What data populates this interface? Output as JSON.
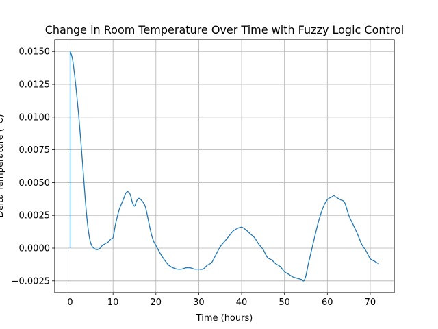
{
  "chart_data": {
    "type": "line",
    "title": "Change in Room Temperature Over Time with Fuzzy Logic Control",
    "xlabel": "Time (hours)",
    "ylabel": "Delta Temperature (°C)",
    "xlim": [
      -3.6,
      75.6
    ],
    "ylim": [
      -0.0034,
      0.0159
    ],
    "xticks": [
      0,
      10,
      20,
      30,
      40,
      50,
      60,
      70
    ],
    "yticks": [
      -0.0025,
      0.0,
      0.0025,
      0.005,
      0.0075,
      0.01,
      0.0125,
      0.015
    ],
    "xtick_labels": [
      "0",
      "10",
      "20",
      "30",
      "40",
      "50",
      "60",
      "70"
    ],
    "ytick_labels": [
      "−0.0025",
      "0.0000",
      "0.0025",
      "0.0050",
      "0.0075",
      "0.0100",
      "0.0125",
      "0.0150"
    ],
    "grid": true,
    "series": [
      {
        "color": "#1f77b4",
        "x": [
          0,
          0,
          0.5,
          1,
          1.5,
          2,
          2.5,
          3,
          3.5,
          4,
          4.5,
          5,
          5.5,
          6,
          6.5,
          7,
          7.5,
          8,
          8.5,
          9,
          9.5,
          10,
          10.5,
          11,
          11.5,
          12,
          12.5,
          13,
          13.5,
          14,
          14.5,
          15,
          15.5,
          16,
          16.5,
          17,
          17.5,
          18,
          18.5,
          19,
          19.5,
          20,
          21,
          22,
          23,
          24,
          25,
          26,
          27,
          28,
          29,
          30,
          31,
          32,
          33,
          34,
          35,
          36,
          37,
          38,
          39,
          40,
          41,
          42,
          43,
          44,
          45,
          46,
          47,
          48,
          49,
          50,
          51,
          52,
          53,
          54,
          54.5,
          55,
          55.5,
          56,
          57,
          58,
          59,
          60,
          61,
          61.5,
          62,
          63,
          64,
          65,
          66,
          67,
          68,
          69,
          70,
          71,
          72
        ],
        "y": [
          0.0,
          0.015,
          0.0145,
          0.0133,
          0.0118,
          0.0101,
          0.0081,
          0.006,
          0.0038,
          0.002,
          0.0008,
          0.0002,
          0.0,
          -0.0001,
          -0.0001,
          0.0,
          0.0002,
          0.0003,
          0.0004,
          0.0005,
          0.0007,
          0.0008,
          0.0017,
          0.0024,
          0.003,
          0.0034,
          0.0038,
          0.0042,
          0.0043,
          0.0041,
          0.0035,
          0.0032,
          0.0036,
          0.0038,
          0.0037,
          0.0035,
          0.0032,
          0.0025,
          0.0017,
          0.001,
          0.0005,
          0.0002,
          -0.0004,
          -0.0009,
          -0.0013,
          -0.0015,
          -0.0016,
          -0.0016,
          -0.0015,
          -0.0015,
          -0.0016,
          -0.0016,
          -0.0016,
          -0.0013,
          -0.0011,
          -0.0005,
          0.0001,
          0.0005,
          0.0009,
          0.0013,
          0.0015,
          0.0016,
          0.0014,
          0.0011,
          0.0008,
          0.0003,
          -0.0001,
          -0.0007,
          -0.0009,
          -0.0012,
          -0.0014,
          -0.0018,
          -0.002,
          -0.0022,
          -0.0023,
          -0.0024,
          -0.0025,
          -0.0021,
          -0.0013,
          -0.0006,
          0.0008,
          0.0021,
          0.0031,
          0.0037,
          0.0039,
          0.004,
          0.0039,
          0.0037,
          0.0035,
          0.0025,
          0.0018,
          0.0011,
          0.0003,
          -0.0002,
          -0.0008,
          -0.001,
          -0.0012
        ]
      }
    ]
  }
}
